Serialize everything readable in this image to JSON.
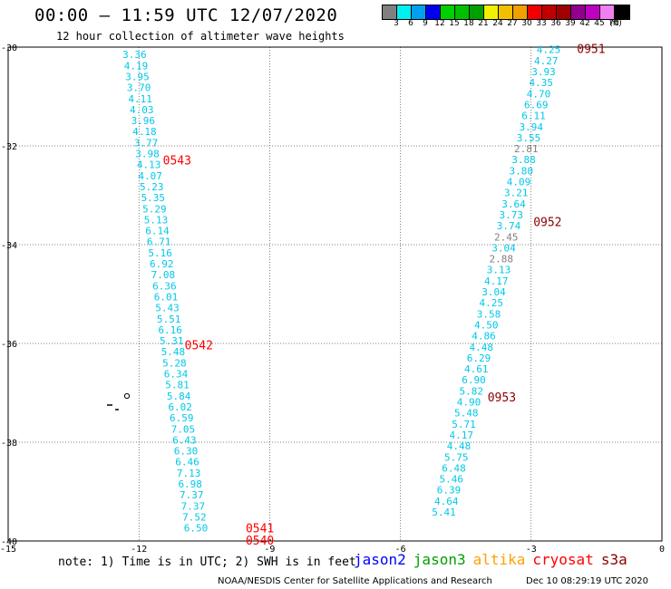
{
  "header": {
    "title": "00:00 – 11:59 UTC 12/07/2020",
    "subtitle": "12 hour collection of altimeter wave heights"
  },
  "colorbar": {
    "colors": [
      "#808080",
      "#00f0f0",
      "#00a0f0",
      "#0000f0",
      "#00d000",
      "#00c000",
      "#00a000",
      "#f0f000",
      "#f0c000",
      "#f0a000",
      "#f00000",
      "#c00000",
      "#a00000",
      "#900090",
      "#c000c0",
      "#f080f0",
      "#000000"
    ],
    "labels": [
      "3",
      "6",
      "9",
      "12",
      "15",
      "18",
      "21",
      "24",
      "27",
      "30",
      "33",
      "36",
      "39",
      "42",
      "45",
      "70",
      "(ft)"
    ]
  },
  "chart_data": {
    "type": "scatter",
    "xlim": [
      -15,
      0
    ],
    "ylim": [
      -40,
      -30
    ],
    "x_ticks": [
      "-15",
      "-12",
      "-9",
      "-6",
      "-3",
      "0"
    ],
    "y_ticks": [
      "-30",
      "-32",
      "-34",
      "-36",
      "-38",
      "-40"
    ],
    "grid": true,
    "colors": {
      "cyan": "#00c8e8",
      "gray": "#808080",
      "time_red": "#ff0000",
      "time_dark": "#8b0000"
    },
    "tracks": [
      {
        "start_lon": -12.1,
        "start_lat": -30.15,
        "lon_step": 0.0327,
        "color_key": "cyan",
        "values": [
          "3.36",
          "4.19",
          "3.95",
          "3.70",
          "4.11",
          "4.03",
          "3.96",
          "4.18",
          "3.77",
          "3.98",
          "4.13",
          "4.07",
          "5.23",
          "5.35",
          "5.29",
          "5.13",
          "6.14",
          "6.71",
          "5.16",
          "6.92",
          "7.08",
          "6.36",
          "6.01",
          "5.43",
          "5.51",
          "6.16",
          "5.31",
          "5.48",
          "5.28",
          "6.34",
          "5.81",
          "5.84",
          "6.02",
          "6.59",
          "7.05",
          "6.43",
          "6.30",
          "6.46",
          "7.13",
          "6.98",
          "7.37",
          "7.37",
          "7.52",
          "6.50"
        ],
        "gray_idx": []
      },
      {
        "start_lon": -2.6,
        "start_lat": -30.05,
        "lon_step": -0.0572,
        "color_key": "cyan",
        "values": [
          "4.25",
          "4.27",
          "3.93",
          "4.35",
          "4.70",
          "6.69",
          "6.11",
          "3.94",
          "3.55",
          "2.81",
          "3.88",
          "3.80",
          "4.09",
          "3.21",
          "3.64",
          "3.73",
          "3.74",
          "2.45",
          "3.04",
          "2.88",
          "3.13",
          "4.17",
          "3.04",
          "4.25",
          "3.58",
          "4.50",
          "4.86",
          "4.48",
          "6.29",
          "4.61",
          "6.90",
          "5.82",
          "4.90",
          "5.48",
          "5.71",
          "4.17",
          "4.48",
          "5.75",
          "6.48",
          "5.46",
          "6.39",
          "4.64",
          "5.41"
        ],
        "gray_idx": [
          9,
          17,
          19
        ]
      }
    ],
    "time_labels": [
      {
        "text": "0543",
        "lon": -11.45,
        "lat": -32.3,
        "color_key": "time_red"
      },
      {
        "text": "0542",
        "lon": -10.95,
        "lat": -36.05,
        "color_key": "time_red"
      },
      {
        "text": "0541",
        "lon": -9.55,
        "lat": -39.75,
        "color_key": "time_red"
      },
      {
        "text": "0540",
        "lon": -9.55,
        "lat": -40.0,
        "color_key": "time_red"
      },
      {
        "text": "0951",
        "lon": -1.95,
        "lat": -30.05,
        "color_key": "time_dark"
      },
      {
        "text": "0952",
        "lon": -2.95,
        "lat": -33.55,
        "color_key": "time_dark"
      },
      {
        "text": "0953",
        "lon": -4.0,
        "lat": -37.1,
        "color_key": "time_dark"
      }
    ]
  },
  "footer": {
    "note": "note: 1) Time is in UTC; 2) SWH is in feet",
    "missions": [
      {
        "name": "jason2",
        "color": "#0000ff"
      },
      {
        "name": "jason3",
        "color": "#00a000"
      },
      {
        "name": "altika",
        "color": "#ffa000"
      },
      {
        "name": "cryosat",
        "color": "#ff0000"
      },
      {
        "name": "s3a",
        "color": "#8b0000"
      }
    ],
    "credit": "NOAA/NESDIS Center for Satellite Applications and Research",
    "timestamp": "Dec 10 08:29:19 UTC 2020"
  }
}
